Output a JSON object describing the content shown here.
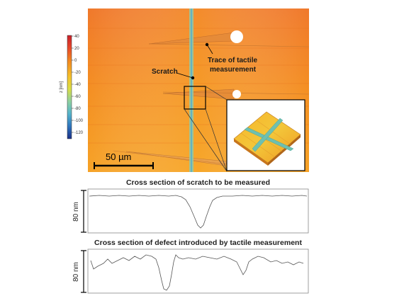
{
  "colorbar": {
    "axis_label": "z [nm]",
    "ticks": [
      "40",
      "20",
      "0",
      "-20",
      "-40",
      "-60",
      "-80",
      "-100",
      "-120"
    ],
    "colors": [
      "#e8322a",
      "#f06a1c",
      "#f7a71e",
      "#f2d02a",
      "#cfe24d",
      "#8fd2a3",
      "#57b6c9",
      "#2f7cc0",
      "#1f3f96"
    ]
  },
  "map": {
    "scale_bar_label": "50 µm",
    "annotation_scratch": "Scratch",
    "annotation_trace_line1": "Trace of tactile",
    "annotation_trace_line2": "measurement"
  },
  "profiles": {
    "scratch_title": "Cross section of scratch to be measured",
    "scratch_scale": "80 nm",
    "defect_title": "Cross section of defect introduced by tactile measurement",
    "defect_scale": "80 nm"
  }
}
